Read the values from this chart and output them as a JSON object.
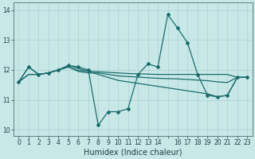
{
  "title": "",
  "xlabel": "Humidex (Indice chaleur)",
  "bg_color": "#c8e8e8",
  "grid_color": "#afd4d4",
  "line_color": "#1a6b6b",
  "xlim": [
    -0.5,
    23.5
  ],
  "ylim": [
    9.8,
    14.25
  ],
  "yticks": [
    10,
    11,
    12,
    13,
    14
  ],
  "xtick_positions": [
    0,
    1,
    2,
    3,
    4,
    5,
    6,
    7,
    8,
    9,
    10,
    11,
    12,
    13,
    14,
    15,
    16,
    17,
    18,
    19,
    20,
    21,
    22,
    23
  ],
  "xtick_labels": [
    "0",
    "1",
    "2",
    "3",
    "4",
    "5",
    "6",
    "7",
    "8",
    "9",
    "10",
    "11",
    "12",
    "13",
    "14",
    "",
    "16",
    "17",
    "18",
    "19",
    "20",
    "21",
    "22",
    "23"
  ],
  "series": [
    [
      11.6,
      12.1,
      11.85,
      11.9,
      12.0,
      12.15,
      12.1,
      12.0,
      10.15,
      10.6,
      10.6,
      10.7,
      11.85,
      12.2,
      12.1,
      13.85,
      13.4,
      12.9,
      11.85,
      11.15,
      11.1,
      11.15,
      11.75,
      11.75
    ],
    [
      11.6,
      12.1,
      11.85,
      11.9,
      12.0,
      12.15,
      12.05,
      11.95,
      11.85,
      11.75,
      11.65,
      11.6,
      11.55,
      11.5,
      11.45,
      11.4,
      11.35,
      11.3,
      11.25,
      11.2,
      11.1,
      11.15,
      11.75,
      11.75
    ],
    [
      11.6,
      11.85,
      11.85,
      11.9,
      12.0,
      12.1,
      11.95,
      11.9,
      11.9,
      11.85,
      11.8,
      11.78,
      11.76,
      11.74,
      11.72,
      11.71,
      11.7,
      11.68,
      11.66,
      11.64,
      11.6,
      11.58,
      11.75,
      11.75
    ],
    [
      11.6,
      11.85,
      11.85,
      11.9,
      12.0,
      12.1,
      11.98,
      11.96,
      11.94,
      11.92,
      11.9,
      11.88,
      11.87,
      11.86,
      11.85,
      11.85,
      11.85,
      11.85,
      11.85,
      11.85,
      11.85,
      11.85,
      11.75,
      11.75
    ]
  ],
  "xdata": [
    0,
    1,
    2,
    3,
    4,
    5,
    6,
    7,
    8,
    9,
    10,
    11,
    12,
    13,
    14,
    15,
    16,
    17,
    18,
    19,
    20,
    21,
    22,
    23
  ],
  "marker": "D",
  "markersize": 2.0,
  "linewidth": 0.9,
  "fontsize_tick": 5.5,
  "fontsize_label": 7.0
}
